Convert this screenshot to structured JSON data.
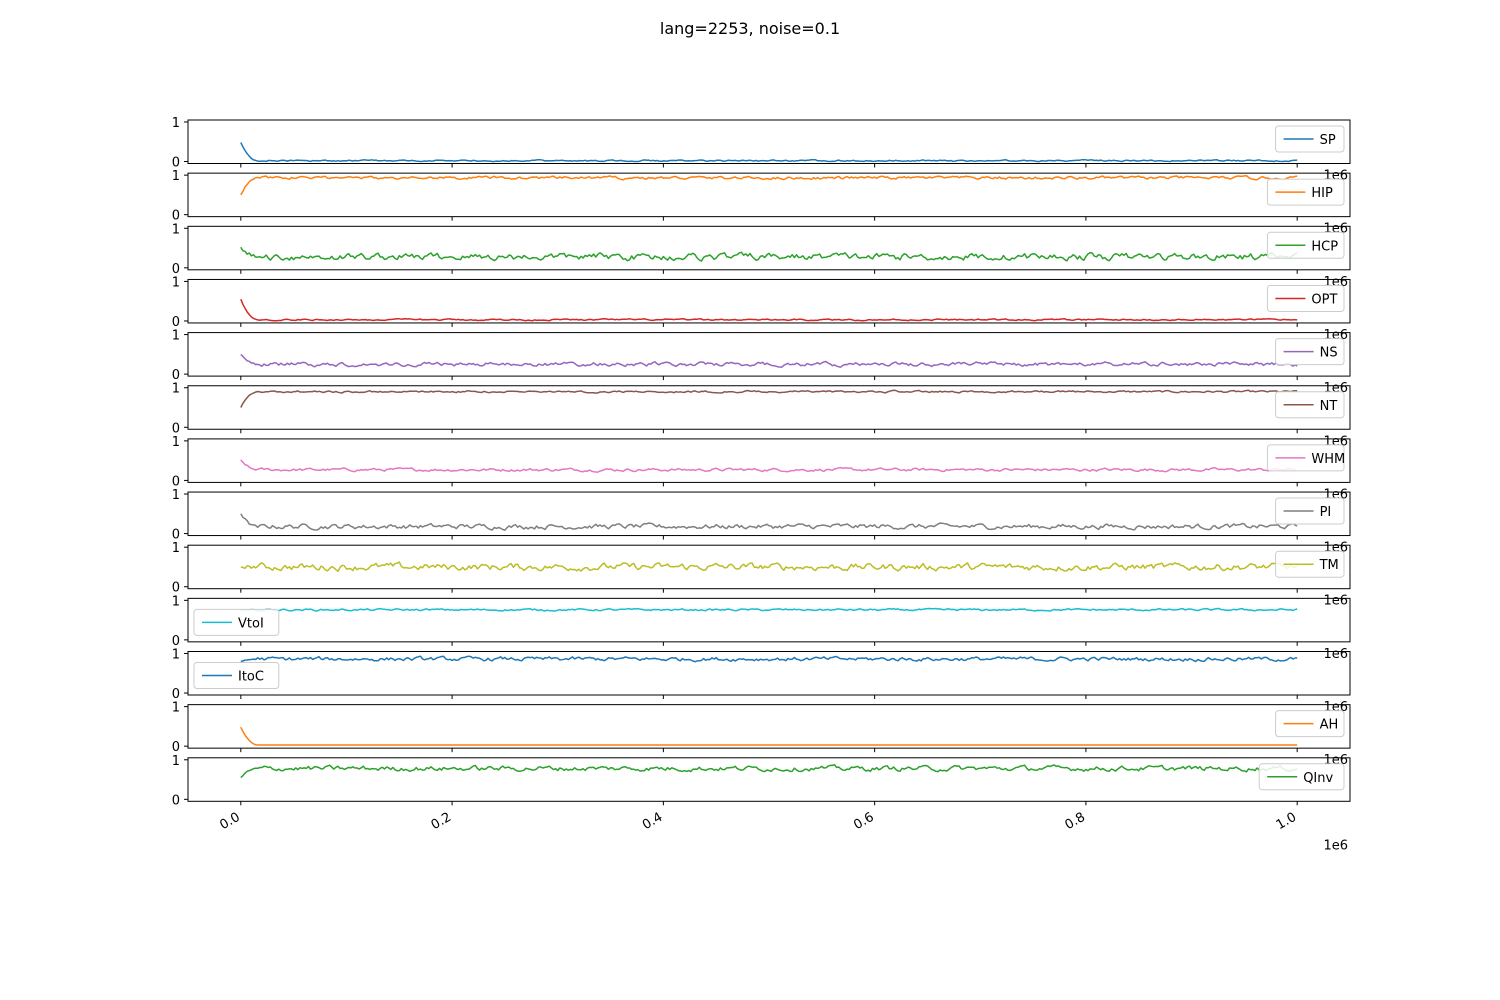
{
  "title": "lang=2253, noise=0.1",
  "chart_data": {
    "type": "line",
    "title": "lang=2253, noise=0.1",
    "xlim": [
      -50000,
      1050000
    ],
    "ylim": [
      0,
      1
    ],
    "x_range": [
      0,
      1000000
    ],
    "x_ticks": [
      0,
      200000,
      400000,
      600000,
      800000,
      1000000
    ],
    "x_tick_labels": [
      "0.0",
      "0.2",
      "0.4",
      "0.6",
      "0.8",
      "1.0"
    ],
    "x_offset_label": "1e6",
    "y_ticks": [
      0,
      1
    ],
    "y_tick_labels": [
      "0",
      "1"
    ],
    "grid": false,
    "panels": [
      {
        "name": "SP",
        "color": "#1f77b4",
        "start": 0.48,
        "mean": 0.02,
        "spread": 0.015,
        "legend": "right"
      },
      {
        "name": "HIP",
        "color": "#ff7f0e",
        "start": 0.5,
        "mean": 0.93,
        "spread": 0.03,
        "legend": "right"
      },
      {
        "name": "HCP",
        "color": "#2ca02c",
        "start": 0.52,
        "mean": 0.28,
        "spread": 0.07,
        "legend": "right"
      },
      {
        "name": "OPT",
        "color": "#d62728",
        "start": 0.55,
        "mean": 0.03,
        "spread": 0.015,
        "legend": "right"
      },
      {
        "name": "NS",
        "color": "#9467bd",
        "start": 0.5,
        "mean": 0.25,
        "spread": 0.04,
        "legend": "right"
      },
      {
        "name": "NT",
        "color": "#8c564b",
        "start": 0.5,
        "mean": 0.9,
        "spread": 0.02,
        "legend": "right"
      },
      {
        "name": "WHM",
        "color": "#e377c2",
        "start": 0.52,
        "mean": 0.27,
        "spread": 0.03,
        "legend": "right"
      },
      {
        "name": "PI",
        "color": "#7f7f7f",
        "start": 0.5,
        "mean": 0.18,
        "spread": 0.05,
        "legend": "right"
      },
      {
        "name": "TM",
        "color": "#bcbd22",
        "start": 0.5,
        "mean": 0.5,
        "spread": 0.07,
        "legend": "right"
      },
      {
        "name": "VtoI",
        "color": "#17becf",
        "start": 0.75,
        "mean": 0.76,
        "spread": 0.02,
        "legend": "left"
      },
      {
        "name": "ItoC",
        "color": "#1f77b4",
        "start": 0.8,
        "mean": 0.86,
        "spread": 0.04,
        "legend": "left"
      },
      {
        "name": "AH",
        "color": "#ff7f0e",
        "start": 0.48,
        "mean": 0.03,
        "spread": 0.0,
        "legend": "right"
      },
      {
        "name": "QInv",
        "color": "#2ca02c",
        "start": 0.55,
        "mean": 0.78,
        "spread": 0.05,
        "legend": "right"
      }
    ]
  }
}
